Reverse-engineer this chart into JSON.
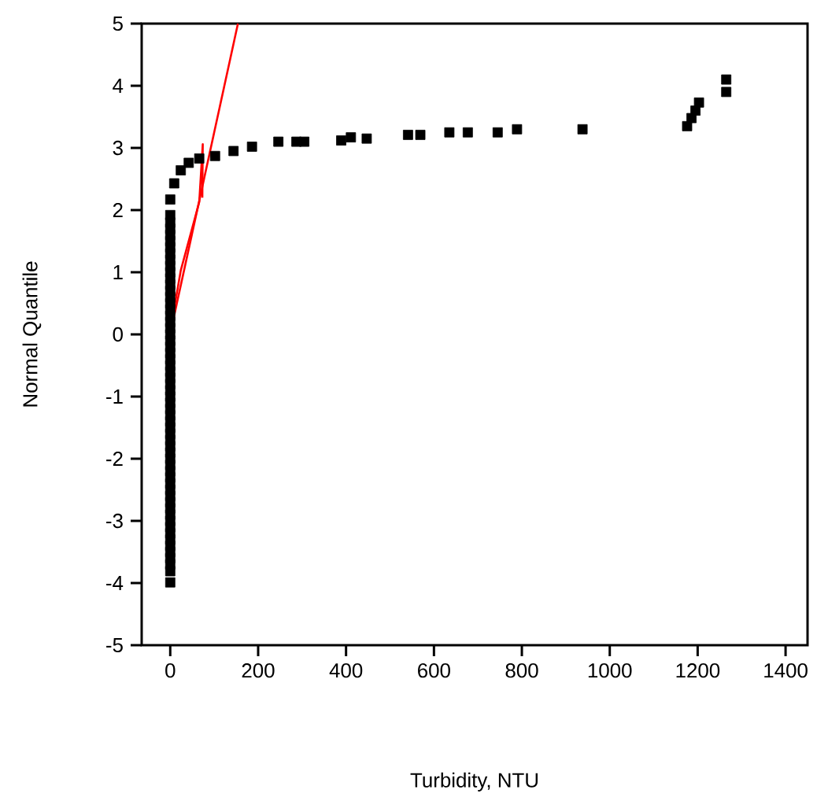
{
  "chart_data": {
    "type": "scatter",
    "xlabel": "Turbidity, NTU",
    "ylabel": "Normal Quantile",
    "xlim": [
      -65,
      1450
    ],
    "ylim": [
      -5,
      5
    ],
    "xticks": [
      0,
      200,
      400,
      600,
      800,
      1000,
      1200,
      1400
    ],
    "yticks": [
      -5,
      -4,
      -3,
      -2,
      -1,
      0,
      1,
      2,
      3,
      4,
      5
    ],
    "series": [
      {
        "color": "#000000",
        "marker": "square",
        "x": [
          0,
          0,
          0,
          0,
          0,
          0,
          0,
          0,
          0,
          0,
          0,
          0,
          0,
          0,
          0,
          0,
          0,
          0,
          0,
          0,
          0,
          0,
          0,
          0,
          0,
          0,
          0,
          0,
          0,
          0,
          0,
          0,
          0,
          0,
          0,
          0,
          0,
          0,
          0,
          0,
          0,
          0,
          0,
          0,
          0,
          0,
          0,
          0,
          0,
          0,
          0,
          0,
          0,
          0,
          0,
          0,
          0,
          0,
          0,
          0,
          9,
          24,
          42,
          66,
          102,
          144,
          186,
          246,
          287,
          305,
          389,
          411,
          447,
          541,
          569,
          635,
          677,
          745,
          789,
          938,
          1176,
          1186,
          1195,
          1203,
          1265,
          1265
        ],
        "values": [
          -3.99,
          -3.81,
          -3.7,
          -3.6,
          -3.5,
          -3.4,
          -3.3,
          -3.2,
          -3.1,
          -3.0,
          -2.9,
          -2.8,
          -2.7,
          -2.6,
          -2.5,
          -2.4,
          -2.3,
          -2.2,
          -2.1,
          -2.0,
          -1.9,
          -1.8,
          -1.7,
          -1.6,
          -1.5,
          -1.4,
          -1.3,
          -1.2,
          -1.1,
          -1.0,
          -0.9,
          -0.8,
          -0.7,
          -0.6,
          -0.5,
          -0.4,
          -0.3,
          -0.2,
          -0.1,
          0.0,
          0.1,
          0.2,
          0.3,
          0.4,
          0.5,
          0.6,
          0.7,
          0.8,
          0.9,
          1.0,
          1.1,
          1.2,
          1.3,
          1.4,
          1.5,
          1.6,
          1.7,
          1.8,
          1.92,
          2.17,
          2.43,
          2.64,
          2.76,
          2.83,
          2.87,
          2.95,
          3.02,
          3.1,
          3.1,
          3.1,
          3.12,
          3.17,
          3.15,
          3.21,
          3.21,
          3.25,
          3.25,
          3.25,
          3.3,
          3.3,
          3.35,
          3.48,
          3.6,
          3.73,
          3.9,
          4.1
        ]
      },
      {
        "type": "line",
        "color": "#ff0000",
        "marker": "none",
        "x": [
          -5,
          154
        ],
        "values": [
          -0.15,
          5
        ]
      },
      {
        "type": "line",
        "color": "#ff0000",
        "marker": "none",
        "x": [
          -5,
          24,
          66,
          74,
          73
        ],
        "values": [
          -0.15,
          1.03,
          2.13,
          3.06,
          2.2
        ]
      }
    ]
  }
}
